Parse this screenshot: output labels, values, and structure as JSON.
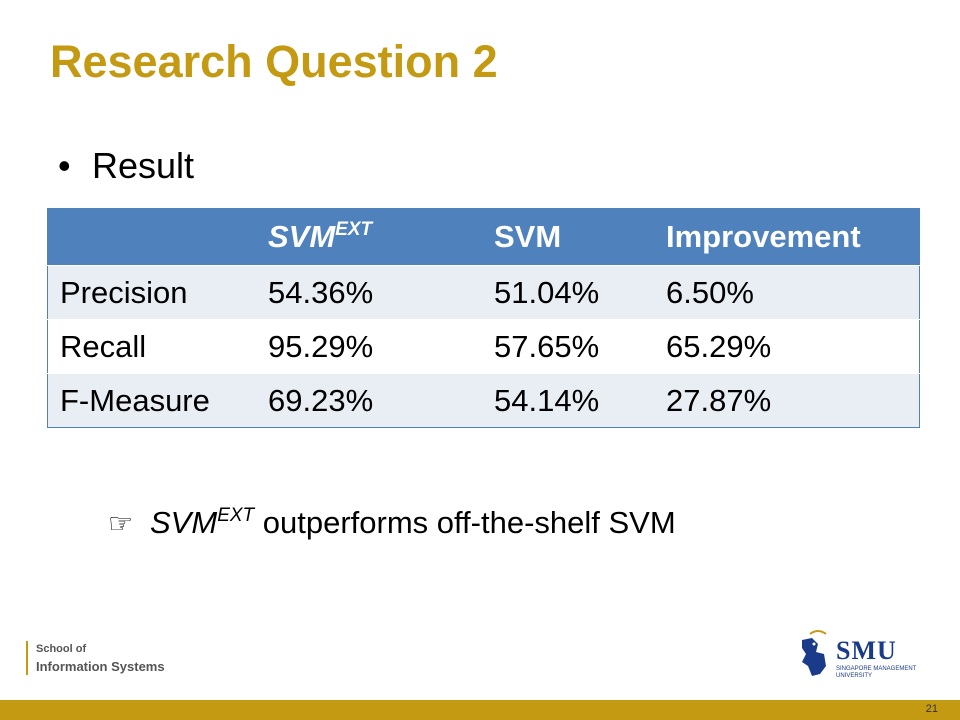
{
  "slide": {
    "title": "Research Question 2",
    "bullet": "Result",
    "bullet_marker": "•"
  },
  "table": {
    "headers": [
      "",
      "SVM",
      "SVM",
      "Improvement"
    ],
    "header_superscript": "EXT",
    "rows": [
      [
        "Precision",
        "54.36%",
        "51.04%",
        "6.50%"
      ],
      [
        "Recall",
        "95.29%",
        "57.65%",
        "65.29%"
      ],
      [
        "F-Measure",
        "69.23%",
        "54.14%",
        "27.87%"
      ]
    ]
  },
  "conclusion": {
    "icon": "pointing-hand-icon",
    "icon_glyph": "☞",
    "term": "SVM",
    "superscript": "EXT",
    "text": " outperforms off-the-shelf SVM"
  },
  "footer": {
    "line1": "School of",
    "line2": "Information Systems",
    "logo_name": "SMU",
    "logo_line1": "SINGAPORE MANAGEMENT",
    "logo_line2": "UNIVERSITY",
    "page_number": "21"
  },
  "colors": {
    "accent_gold": "#c49a12",
    "table_header": "#4f81bd",
    "row_band": "#e9edf4",
    "logo_blue": "#1a3a8a"
  }
}
